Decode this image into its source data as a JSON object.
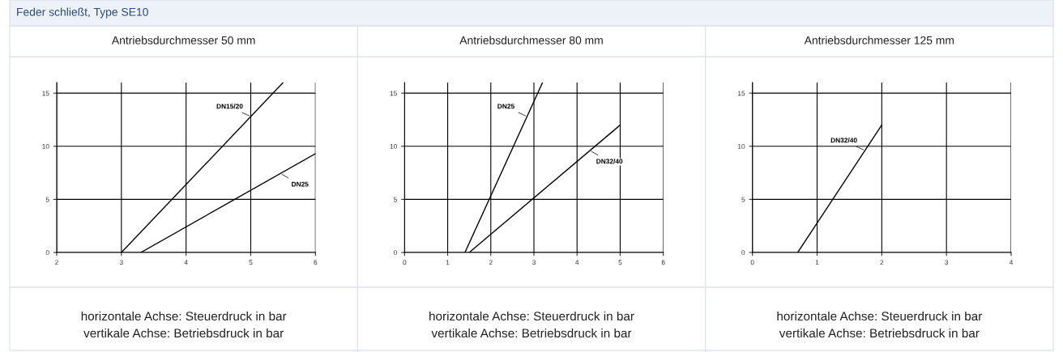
{
  "chart_data": [
    {
      "type": "line",
      "title": "Feder schließt, Type SE10",
      "subtitle": "Antriebsdurchmesser 50 mm",
      "xlim": [
        2,
        6
      ],
      "ylim": [
        0,
        16
      ],
      "xticks": [
        2,
        3,
        4,
        5,
        6
      ],
      "yticks": [
        0,
        5,
        10,
        15
      ],
      "grid": true,
      "legend": false,
      "series": [
        {
          "name": "DN15/20",
          "color": "#000000",
          "x": [
            3,
            5.5
          ],
          "values": [
            0,
            16
          ]
        },
        {
          "name": "DN25",
          "color": "#000000",
          "x": [
            3.3,
            6
          ],
          "values": [
            0,
            9.3
          ]
        }
      ],
      "annotations": [
        "horizontale Achse: Steuerdruck in bar",
        "vertikale Achse: Betriebsdruck in bar"
      ]
    },
    {
      "type": "line",
      "subtitle": "Antriebsdurchmesser 80 mm",
      "xlim": [
        0,
        6
      ],
      "ylim": [
        0,
        16
      ],
      "xticks": [
        0,
        1,
        2,
        3,
        4,
        5,
        6
      ],
      "yticks": [
        0,
        5,
        10,
        15
      ],
      "grid": true,
      "legend": false,
      "series": [
        {
          "name": "DN25",
          "color": "#000000",
          "x": [
            1.4,
            3.2
          ],
          "values": [
            0,
            16
          ]
        },
        {
          "name": "DN32/40",
          "color": "#000000",
          "x": [
            1.5,
            5
          ],
          "values": [
            0,
            12
          ]
        }
      ],
      "annotations": [
        "horizontale Achse: Steuerdruck in bar",
        "vertikale Achse: Betriebsdruck in bar"
      ]
    },
    {
      "type": "line",
      "subtitle": "Antriebsdurchmesser 125 mm",
      "xlim": [
        0,
        4
      ],
      "ylim": [
        0,
        16
      ],
      "xticks": [
        0,
        1,
        2,
        3,
        4
      ],
      "yticks": [
        0,
        5,
        10,
        15
      ],
      "grid": true,
      "legend": false,
      "series": [
        {
          "name": "DN32/40",
          "color": "#000000",
          "x": [
            0.7,
            2
          ],
          "values": [
            0,
            12
          ]
        }
      ],
      "annotations": [
        "horizontale Achse: Steuerdruck in bar",
        "vertikale Achse: Betriebsdruck in bar"
      ]
    }
  ]
}
